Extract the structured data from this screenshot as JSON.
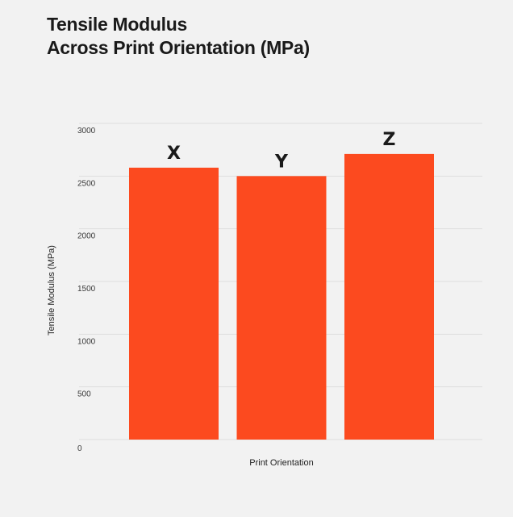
{
  "chart_data": {
    "type": "bar",
    "title_lines": [
      "Tensile Modulus",
      "Across Print Orientation (MPa)"
    ],
    "categories": [
      "X",
      "Y",
      "Z"
    ],
    "values": [
      2580,
      2500,
      2710
    ],
    "xlabel": "Print Orientation",
    "ylabel": "Tensile Modulus (MPa)",
    "ylim": [
      0,
      3000
    ],
    "yticks": [
      0,
      500,
      1000,
      1500,
      2000,
      2500,
      3000
    ],
    "show_x_tick_labels": false,
    "bar_labels_above": true,
    "grid": "horizontal",
    "legend": "none",
    "bar_color": "#fc4a1f"
  }
}
